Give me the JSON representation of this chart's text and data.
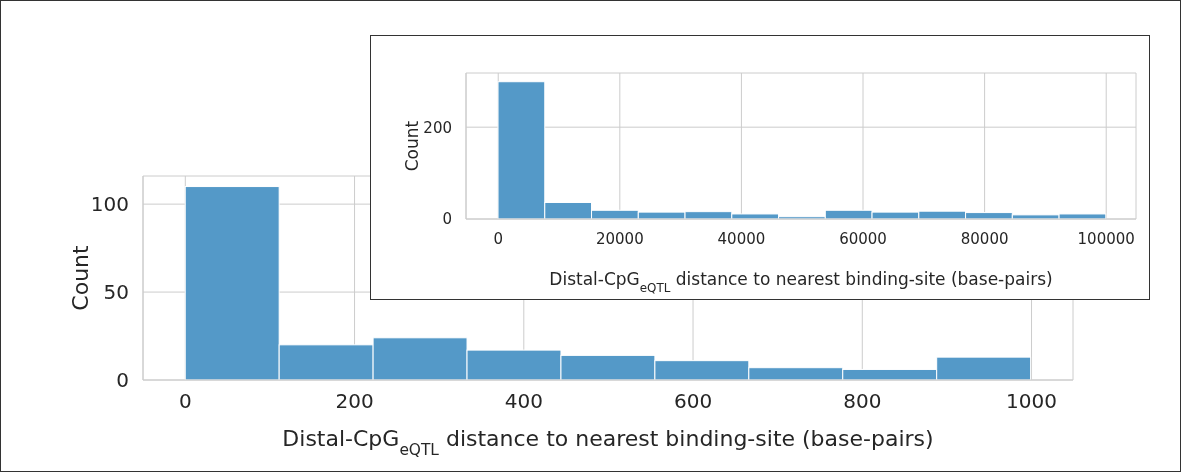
{
  "chart_data": [
    {
      "type": "histogram",
      "bins": [
        0,
        111,
        222,
        333,
        444,
        555,
        666,
        777,
        888,
        999
      ],
      "values": [
        110,
        20,
        24,
        17,
        14,
        11,
        7,
        6,
        13
      ],
      "color": "#5499c8",
      "xlim": [
        -50,
        1049
      ],
      "ylim": [
        0,
        116
      ],
      "xticks": [
        0,
        200,
        400,
        600,
        800,
        1000
      ],
      "yticks": [
        0,
        50,
        100
      ],
      "xlabel": "Distal-CpG$_{eQTL}$ distance to nearest binding-site (base-pairs)",
      "ylabel": "Count",
      "grid": true
    },
    {
      "type": "histogram",
      "bins": [
        0,
        7690,
        15380,
        23070,
        30760,
        38450,
        46140,
        53830,
        61520,
        69210,
        76900,
        84590,
        92280,
        99970
      ],
      "values": [
        299,
        36,
        19,
        15,
        16,
        11,
        5,
        19,
        15,
        17,
        14,
        9,
        11
      ],
      "color": "#5499c8",
      "xlim": [
        -5300,
        104900
      ],
      "ylim": [
        0,
        318
      ],
      "xticks": [
        0,
        20000,
        40000,
        60000,
        80000,
        100000
      ],
      "yticks": [
        0,
        200
      ],
      "xlabel": "Distal-CpG$_{eQTL}$ distance to nearest binding-site (base-pairs)",
      "ylabel": "Count",
      "grid": true
    }
  ]
}
